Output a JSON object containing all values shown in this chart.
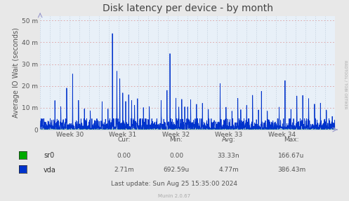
{
  "title": "Disk latency per device - by month",
  "ylabel": "Average IO Wait (seconds)",
  "bg_color": "#e8e8e8",
  "plot_bg_color": "#e8f0f8",
  "grid_h_color": "#dd9999",
  "grid_v_color": "#aabbcc",
  "line_color": "#0033cc",
  "area_color": "#aabbdd",
  "x_axis_color": "#00bb00",
  "ytick_labels": [
    "0",
    "10 m",
    "20 m",
    "30 m",
    "40 m",
    "50 m"
  ],
  "ytick_vals": [
    0,
    0.01,
    0.02,
    0.03,
    0.04,
    0.05
  ],
  "xtick_labels": [
    "Week 30",
    "Week 31",
    "Week 32",
    "Week 33",
    "Week 34"
  ],
  "ymax": 0.052,
  "legend_sr0_color": "#00aa00",
  "legend_vda_color": "#0033cc",
  "table_headers": [
    "Cur:",
    "Min:",
    "Avg:",
    "Max:"
  ],
  "table_sr0": [
    "0.00",
    "0.00",
    "33.33n",
    "166.67u"
  ],
  "table_vda": [
    "2.71m",
    "692.59u",
    "4.77m",
    "386.43m"
  ],
  "last_update": "Last update: Sun Aug 25 15:35:00 2024",
  "munin_version": "Munin 2.0.67",
  "rrdtool_text": "RRDTOOL / TOBI OETIKER",
  "title_fontsize": 10,
  "axis_label_fontsize": 7,
  "tick_fontsize": 6.5,
  "table_fontsize": 6.5,
  "legend_fontsize": 7
}
